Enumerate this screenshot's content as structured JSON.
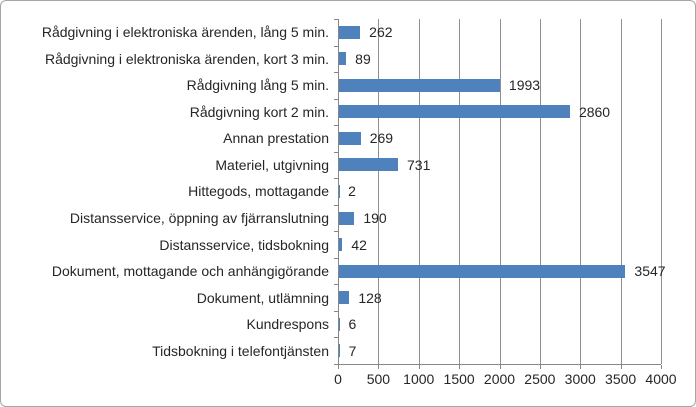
{
  "chart_data": {
    "type": "bar",
    "orientation": "horizontal",
    "title": "",
    "xlabel": "",
    "ylabel": "",
    "categories": [
      "Rådgivning i elektroniska ärenden, lång 5 min.",
      "Rådgivning i elektroniska ärenden, kort 3 min.",
      "Rådgivning lång 5 min.",
      "Rådgivning kort 2 min.",
      "Annan prestation",
      "Materiel, utgivning",
      "Hittegods, mottagande",
      "Distansservice, öppning av fjärranslutning",
      "Distansservice, tidsbokning",
      "Dokument, mottagande och anhängigörande",
      "Dokument, utlämning",
      "Kundrespons",
      "Tidsbokning i telefontjänsten"
    ],
    "values": [
      262,
      89,
      1993,
      2860,
      269,
      731,
      2,
      190,
      42,
      3547,
      128,
      6,
      7
    ],
    "data_labels": true,
    "xlim": [
      0,
      4000
    ],
    "xticks": [
      0,
      500,
      1000,
      1500,
      2000,
      2500,
      3000,
      3500,
      4000
    ],
    "grid": true,
    "legend": "none",
    "colors": {
      "bar": "#4f81bd",
      "gridline": "#8f8f8f",
      "axis": "#868686",
      "text": "#262626",
      "frame_border": "#a6a6a6",
      "background": "#ffffff"
    }
  }
}
